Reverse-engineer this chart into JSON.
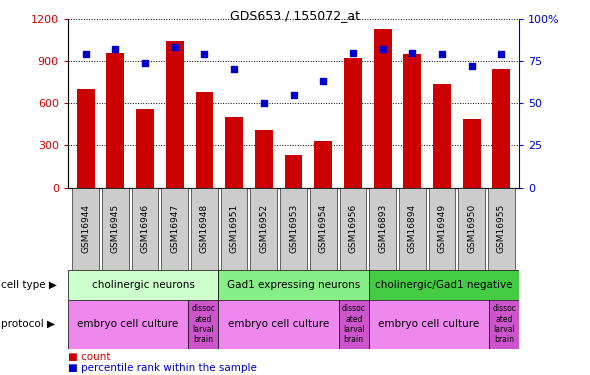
{
  "title": "GDS653 / 155072_at",
  "samples": [
    "GSM16944",
    "GSM16945",
    "GSM16946",
    "GSM16947",
    "GSM16948",
    "GSM16951",
    "GSM16952",
    "GSM16953",
    "GSM16954",
    "GSM16956",
    "GSM16893",
    "GSM16894",
    "GSM16949",
    "GSM16950",
    "GSM16955"
  ],
  "counts": [
    700,
    960,
    560,
    1040,
    680,
    500,
    410,
    230,
    330,
    920,
    1130,
    950,
    735,
    490,
    840
  ],
  "percentile_ranks": [
    79,
    82,
    74,
    83,
    79,
    70,
    50,
    55,
    63,
    80,
    82,
    80,
    79,
    72,
    79
  ],
  "bar_color": "#cc0000",
  "dot_color": "#0000cc",
  "ylim_left": [
    0,
    1200
  ],
  "ylim_right": [
    0,
    100
  ],
  "yticks_left": [
    0,
    300,
    600,
    900,
    1200
  ],
  "yticks_right": [
    0,
    25,
    50,
    75,
    100
  ],
  "cell_types": [
    {
      "label": "cholinergic neurons",
      "start": 0,
      "end": 5,
      "color": "#ccffcc"
    },
    {
      "label": "Gad1 expressing neurons",
      "start": 5,
      "end": 10,
      "color": "#88ee88"
    },
    {
      "label": "cholinergic/Gad1 negative",
      "start": 10,
      "end": 15,
      "color": "#44cc44"
    }
  ],
  "protocols": [
    {
      "label": "embryo cell culture",
      "start": 0,
      "end": 4,
      "color": "#ee88ee"
    },
    {
      "label": "dissoc\nated\nlarval\nbrain",
      "start": 4,
      "end": 5,
      "color": "#cc55cc"
    },
    {
      "label": "embryo cell culture",
      "start": 5,
      "end": 9,
      "color": "#ee88ee"
    },
    {
      "label": "dissoc\nated\nlarval\nbrain",
      "start": 9,
      "end": 10,
      "color": "#cc55cc"
    },
    {
      "label": "embryo cell culture",
      "start": 10,
      "end": 14,
      "color": "#ee88ee"
    },
    {
      "label": "dissoc\nated\nlarval\nbrain",
      "start": 14,
      "end": 15,
      "color": "#cc55cc"
    }
  ],
  "cell_type_label": "cell type",
  "protocol_label": "protocol",
  "legend_count": "count",
  "legend_pct": "percentile rank within the sample",
  "bg_color": "#ffffff",
  "xticklabel_color": "#000000",
  "xtick_bg": "#dddddd"
}
